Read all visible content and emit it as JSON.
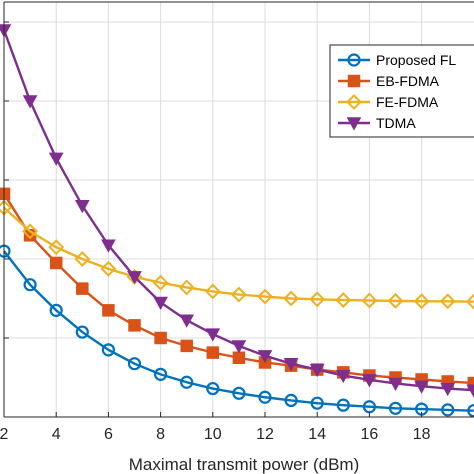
{
  "chart_data": {
    "type": "line",
    "xlabel": "Maximal transmit power (dBm)",
    "ylabel": "",
    "title": "",
    "x_ticks": [
      2,
      4,
      6,
      8,
      10,
      12,
      14,
      16,
      18
    ],
    "xlim": [
      2,
      20
    ],
    "ylim": [
      0,
      1.0
    ],
    "grid": true,
    "legend_position": "top-right",
    "x": [
      2,
      3,
      4,
      5,
      6,
      7,
      8,
      9,
      10,
      11,
      12,
      13,
      14,
      15,
      16,
      17,
      18,
      19,
      20
    ],
    "series": [
      {
        "name": "Proposed FL",
        "color": "#0072BD",
        "marker": "circle",
        "values": [
          0.42,
          0.335,
          0.27,
          0.215,
          0.17,
          0.135,
          0.108,
          0.088,
          0.072,
          0.06,
          0.05,
          0.042,
          0.035,
          0.03,
          0.026,
          0.022,
          0.02,
          0.018,
          0.016
        ]
      },
      {
        "name": "EB-FDMA",
        "color": "#D95319",
        "marker": "square",
        "values": [
          0.565,
          0.46,
          0.39,
          0.325,
          0.27,
          0.232,
          0.2,
          0.18,
          0.163,
          0.15,
          0.138,
          0.13,
          0.12,
          0.113,
          0.105,
          0.1,
          0.095,
          0.09,
          0.086
        ]
      },
      {
        "name": "FE-FDMA",
        "color": "#EDB120",
        "marker": "diamond",
        "values": [
          0.53,
          0.47,
          0.43,
          0.4,
          0.375,
          0.355,
          0.34,
          0.328,
          0.318,
          0.31,
          0.305,
          0.3,
          0.298,
          0.296,
          0.295,
          0.294,
          0.293,
          0.293,
          0.292
        ]
      },
      {
        "name": "TDMA",
        "color": "#7E2F8E",
        "marker": "triangle-down",
        "values": [
          0.98,
          0.8,
          0.655,
          0.535,
          0.435,
          0.355,
          0.29,
          0.245,
          0.21,
          0.18,
          0.155,
          0.135,
          0.12,
          0.105,
          0.094,
          0.085,
          0.078,
          0.072,
          0.068
        ]
      }
    ]
  }
}
